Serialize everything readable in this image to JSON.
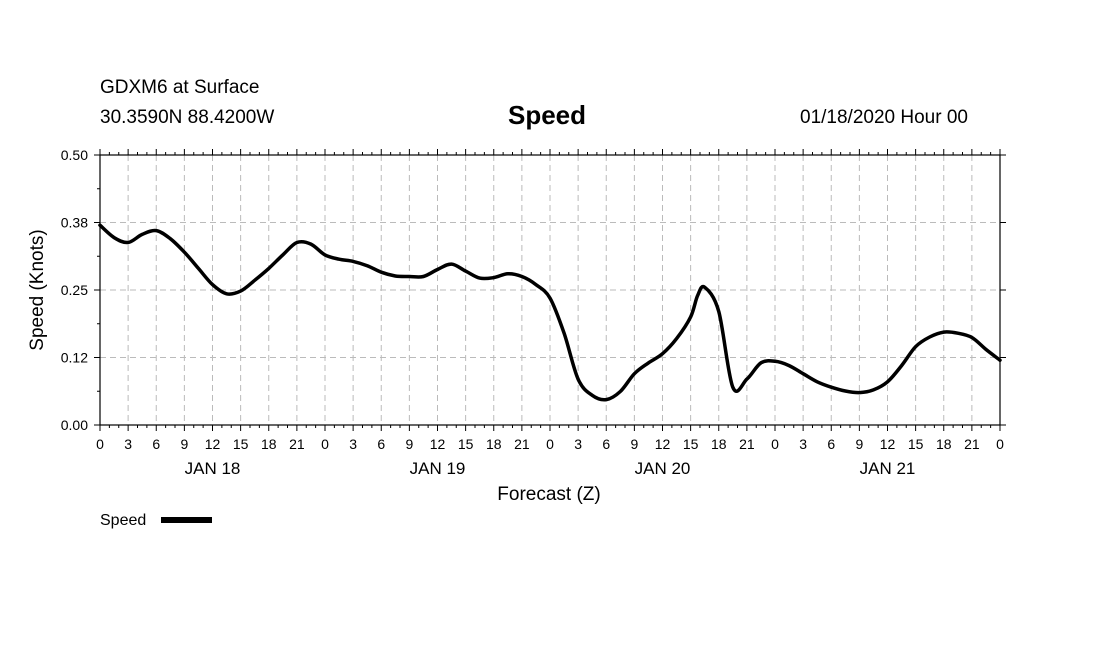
{
  "header": {
    "line1": "GDXM6 at Surface",
    "line2": "30.3590N 88.4200W",
    "title": "Speed",
    "date": "01/18/2020 Hour 00"
  },
  "chart_data": {
    "type": "line",
    "title": "Speed",
    "xlabel": "Forecast (Z)",
    "ylabel": "Speed (Knots)",
    "ylim": [
      0,
      0.5
    ],
    "yticks": [
      "0.00",
      "0.12",
      "0.25",
      "0.38",
      "0.50"
    ],
    "ytick_values": [
      0,
      0.125,
      0.25,
      0.375,
      0.5
    ],
    "xlim": [
      0,
      96
    ],
    "xtick_labels": [
      "0",
      "3",
      "6",
      "9",
      "12",
      "15",
      "18",
      "21",
      "0",
      "3",
      "6",
      "9",
      "12",
      "15",
      "18",
      "21",
      "0",
      "3",
      "6",
      "9",
      "12",
      "15",
      "18",
      "21",
      "0",
      "3",
      "6",
      "9",
      "12",
      "15",
      "18",
      "21",
      "0"
    ],
    "day_labels": [
      {
        "label": "JAN 18",
        "hour": 12
      },
      {
        "label": "JAN 19",
        "hour": 36
      },
      {
        "label": "JAN 20",
        "hour": 60
      },
      {
        "label": "JAN 21",
        "hour": 84
      }
    ],
    "grid": true,
    "legend": {
      "label": "Speed",
      "placement": "bottom-left"
    },
    "series": [
      {
        "name": "Speed",
        "color": "#000000",
        "x": [
          0,
          1.5,
          3,
          4.5,
          6,
          7.5,
          9,
          10.5,
          12,
          13.5,
          15,
          16.5,
          18,
          19.5,
          21,
          22.5,
          24,
          25.5,
          27,
          28.5,
          30,
          31.5,
          33,
          34.5,
          36,
          37.5,
          39,
          40.5,
          42,
          43.5,
          45,
          46.5,
          48,
          49.5,
          51,
          52.5,
          54,
          55.5,
          57,
          58.5,
          60,
          61.5,
          63,
          63.75,
          64.5,
          66,
          67.5,
          69,
          70.5,
          72,
          73.5,
          75,
          76.5,
          78,
          79.5,
          81,
          82.5,
          84,
          85.5,
          87,
          88.5,
          90,
          91.5,
          93,
          94.5,
          96
        ],
        "values": [
          0.37,
          0.347,
          0.338,
          0.353,
          0.36,
          0.345,
          0.32,
          0.29,
          0.26,
          0.243,
          0.248,
          0.268,
          0.29,
          0.315,
          0.338,
          0.335,
          0.315,
          0.307,
          0.303,
          0.295,
          0.283,
          0.276,
          0.275,
          0.275,
          0.288,
          0.298,
          0.285,
          0.272,
          0.273,
          0.28,
          0.275,
          0.26,
          0.235,
          0.17,
          0.085,
          0.055,
          0.047,
          0.062,
          0.095,
          0.115,
          0.132,
          0.16,
          0.2,
          0.24,
          0.255,
          0.21,
          0.07,
          0.085,
          0.115,
          0.118,
          0.11,
          0.095,
          0.08,
          0.07,
          0.063,
          0.06,
          0.065,
          0.08,
          0.11,
          0.145,
          0.163,
          0.172,
          0.17,
          0.162,
          0.14,
          0.12
        ]
      }
    ]
  }
}
